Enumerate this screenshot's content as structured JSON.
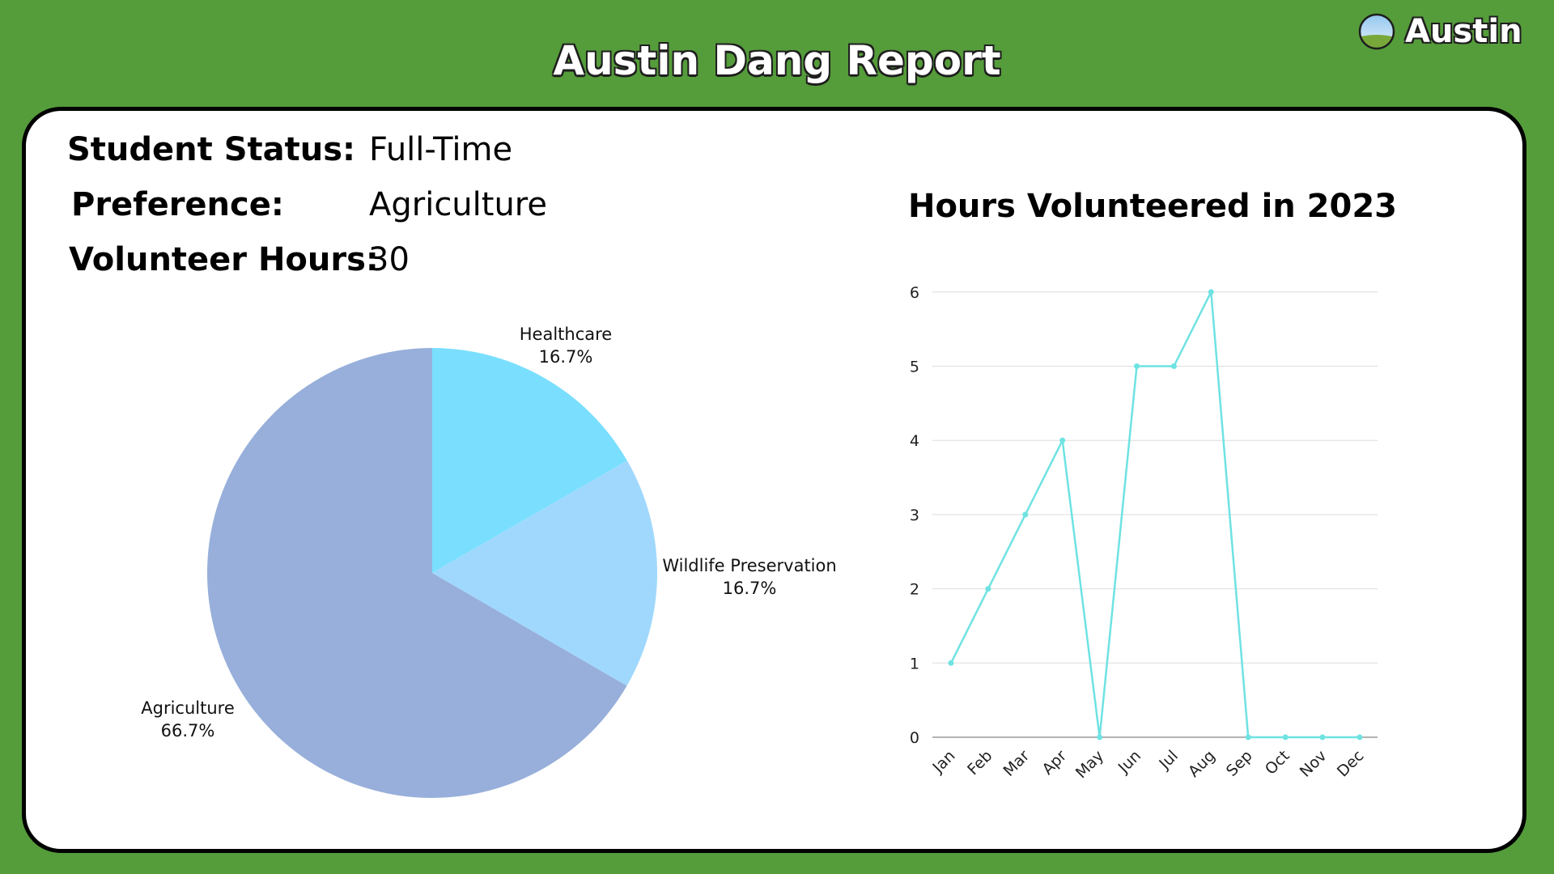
{
  "header": {
    "title": "Austin Dang Report",
    "brand": "Austin"
  },
  "info": [
    {
      "label": "Student Status:",
      "value": "Full-Time"
    },
    {
      "label": "Preference:",
      "value": "Agriculture"
    },
    {
      "label": "Volunteer Hours:",
      "value": "30"
    }
  ],
  "colors": {
    "background": "#559c3b",
    "card": "#ffffff",
    "line": "#6fe2e2",
    "pie_agriculture": "#97afda",
    "pie_healthcare": "#7adffe",
    "pie_wildlife": "#a0d8fd"
  },
  "chart_data": [
    {
      "type": "pie",
      "title": "",
      "slices": [
        {
          "label": "Healthcare",
          "value": 16.7,
          "pct_label": "16.7%",
          "color": "#7adffe"
        },
        {
          "label": "Wildlife Preservation",
          "value": 16.7,
          "pct_label": "16.7%",
          "color": "#a0d8fd"
        },
        {
          "label": "Agriculture",
          "value": 66.7,
          "pct_label": "66.7%",
          "color": "#97afda"
        }
      ]
    },
    {
      "type": "line",
      "title": "Hours Volunteered in 2023",
      "xlabel": "",
      "ylabel": "",
      "categories": [
        "Jan",
        "Feb",
        "Mar",
        "Apr",
        "May",
        "Jun",
        "Jul",
        "Aug",
        "Sep",
        "Oct",
        "Nov",
        "Dec"
      ],
      "values": [
        1,
        2,
        3,
        4,
        0,
        5,
        5,
        6,
        0,
        0,
        0,
        0
      ],
      "ylim": [
        0,
        6
      ],
      "yticks": [
        0,
        1,
        2,
        3,
        4,
        5,
        6
      ],
      "grid": true,
      "color": "#6fe2e2"
    }
  ]
}
